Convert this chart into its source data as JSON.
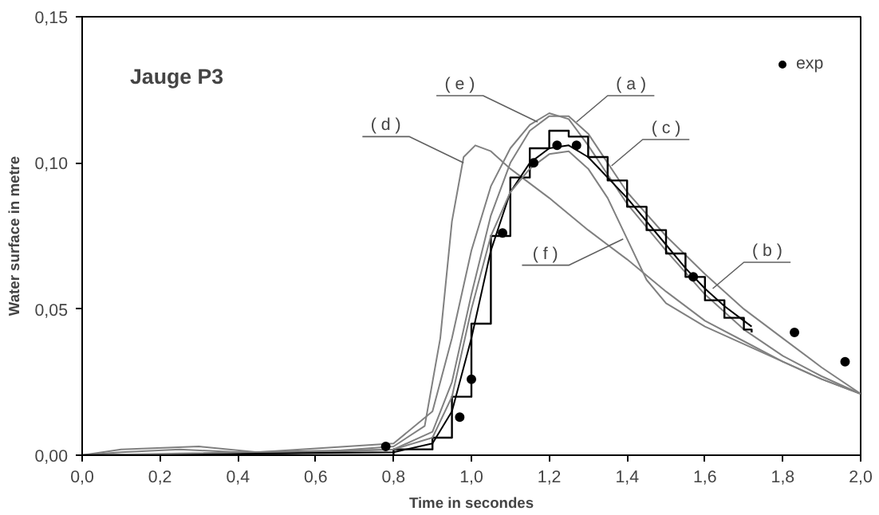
{
  "chart_data": {
    "type": "line",
    "title": "Jauge P3",
    "xlabel": "Time in secondes",
    "ylabel": "Water surface in metre",
    "xlim": [
      0,
      2.0
    ],
    "ylim": [
      0,
      0.15
    ],
    "xticks": [
      {
        "value": 0,
        "label": "0,0"
      },
      {
        "value": 0.2,
        "label": "0,2"
      },
      {
        "value": 0.4,
        "label": "0,4"
      },
      {
        "value": 0.6,
        "label": "0,6"
      },
      {
        "value": 0.8,
        "label": "0,8"
      },
      {
        "value": 1.0,
        "label": "1,0"
      },
      {
        "value": 1.2,
        "label": "1,2"
      },
      {
        "value": 1.4,
        "label": "1,4"
      },
      {
        "value": 1.6,
        "label": "1,6"
      },
      {
        "value": 1.8,
        "label": "1,8"
      },
      {
        "value": 2.0,
        "label": "2,0"
      }
    ],
    "yticks": [
      {
        "value": 0,
        "label": "0,00"
      },
      {
        "value": 0.05,
        "label": "0,05"
      },
      {
        "value": 0.1,
        "label": "0,10"
      },
      {
        "value": 0.15,
        "label": "0,15"
      }
    ],
    "grid": false,
    "legend": "top right",
    "marker": "none",
    "line_style": "solid",
    "series": [
      {
        "color": "#808080",
        "x": [
          0,
          0.1,
          0.25,
          0.4,
          0.6,
          0.8,
          0.88,
          0.92,
          0.95,
          0.98,
          1.01,
          1.05,
          1.1,
          1.2,
          1.3,
          1.4,
          1.5,
          1.6,
          1.7,
          1.8,
          1.9,
          2.0
        ],
        "values": [
          0,
          0.001,
          0.002,
          0.001,
          0.001,
          0.003,
          0.01,
          0.04,
          0.08,
          0.102,
          0.106,
          0.104,
          0.098,
          0.088,
          0.077,
          0.067,
          0.056,
          0.046,
          0.039,
          0.032,
          0.026,
          0.021
        ]
      },
      {
        "color": "#808080",
        "x": [
          0,
          0.4,
          0.8,
          0.9,
          0.95,
          1.0,
          1.05,
          1.1,
          1.15,
          1.2,
          1.25,
          1.3,
          1.35,
          1.4,
          1.5,
          1.6,
          1.7,
          1.8,
          1.9,
          2.0
        ],
        "values": [
          0,
          0,
          0.002,
          0.008,
          0.025,
          0.055,
          0.082,
          0.1,
          0.111,
          0.116,
          0.116,
          0.11,
          0.1,
          0.09,
          0.075,
          0.062,
          0.05,
          0.04,
          0.03,
          0.021
        ]
      },
      {
        "color": "#808080",
        "x": [
          0,
          0.1,
          0.3,
          0.45,
          0.8,
          0.9,
          0.95,
          1.0,
          1.05,
          1.1,
          1.15,
          1.2,
          1.25,
          1.3,
          1.35,
          1.4,
          1.5,
          1.6,
          1.7,
          1.8,
          1.9,
          2.0
        ],
        "values": [
          0,
          0.002,
          0.003,
          0.001,
          0.004,
          0.015,
          0.04,
          0.07,
          0.092,
          0.105,
          0.113,
          0.117,
          0.115,
          0.106,
          0.096,
          0.086,
          0.07,
          0.055,
          0.043,
          0.034,
          0.027,
          0.021
        ]
      },
      {
        "type": "step",
        "color": "#000000",
        "x": [
          0,
          0.8,
          0.9,
          0.95,
          1.0,
          1.05,
          1.1,
          1.15,
          1.2,
          1.25,
          1.3,
          1.35,
          1.4,
          1.45,
          1.5,
          1.55,
          1.6,
          1.65,
          1.7,
          1.72
        ],
        "values": [
          0,
          0.002,
          0.006,
          0.02,
          0.045,
          0.075,
          0.095,
          0.105,
          0.111,
          0.109,
          0.102,
          0.094,
          0.085,
          0.077,
          0.069,
          0.061,
          0.053,
          0.047,
          0.043,
          0.042
        ]
      },
      {
        "color": "#000000",
        "x": [
          0,
          0.8,
          0.9,
          0.95,
          1.0,
          1.05,
          1.1,
          1.15,
          1.2,
          1.25,
          1.3,
          1.4,
          1.5,
          1.55,
          1.6,
          1.65,
          1.7,
          1.72
        ],
        "values": [
          0,
          0.001,
          0.004,
          0.015,
          0.04,
          0.07,
          0.09,
          0.1,
          0.105,
          0.106,
          0.102,
          0.088,
          0.072,
          0.064,
          0.057,
          0.051,
          0.046,
          0.044
        ]
      },
      {
        "color": "#808080",
        "x": [
          0,
          0.8,
          0.9,
          0.95,
          1.0,
          1.05,
          1.1,
          1.15,
          1.2,
          1.25,
          1.3,
          1.35,
          1.4,
          1.45,
          1.5,
          1.6,
          1.7,
          1.8,
          1.9,
          2.0
        ],
        "values": [
          0,
          0.002,
          0.006,
          0.02,
          0.05,
          0.075,
          0.09,
          0.098,
          0.103,
          0.104,
          0.098,
          0.088,
          0.074,
          0.06,
          0.052,
          0.044,
          0.038,
          0.032,
          0.026,
          0.021
        ]
      },
      {
        "type": "scatter",
        "name": "exp",
        "color": "#000000",
        "marker": "circle",
        "x": [
          0.78,
          0.97,
          1.0,
          1.08,
          1.16,
          1.22,
          1.27,
          1.57,
          1.83,
          1.96
        ],
        "values": [
          0.003,
          0.013,
          0.026,
          0.076,
          0.1,
          0.106,
          0.106,
          0.061,
          0.042,
          0.032
        ]
      }
    ],
    "annotations": [
      {
        "text": "( a )",
        "x": 1.27,
        "y": 0.114
      },
      {
        "text": "( b )",
        "x": 1.62,
        "y": 0.057
      },
      {
        "text": "( c )",
        "x": 1.36,
        "y": 0.099
      },
      {
        "text": "( d )",
        "x": 0.98,
        "y": 0.1
      },
      {
        "text": "( e )",
        "x": 1.17,
        "y": 0.114
      },
      {
        "text": "( f )",
        "x": 1.39,
        "y": 0.074
      }
    ]
  }
}
